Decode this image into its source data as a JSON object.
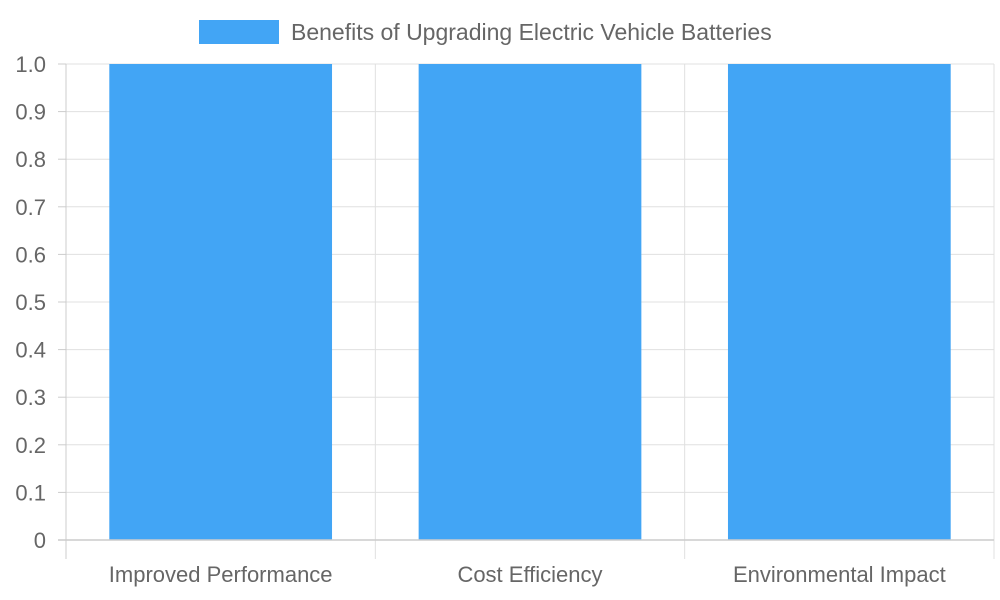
{
  "chart_data": {
    "type": "bar",
    "categories": [
      "Improved Performance",
      "Cost Efficiency",
      "Environmental Impact"
    ],
    "series": [
      {
        "name": "Benefits of Upgrading Electric Vehicle Batteries",
        "values": [
          1,
          1,
          1
        ],
        "color": "#42a5f5"
      }
    ],
    "y_ticks": [
      "0",
      "0.1",
      "0.2",
      "0.3",
      "0.4",
      "0.5",
      "0.6",
      "0.7",
      "0.8",
      "0.9",
      "1.0"
    ],
    "ylim": [
      0,
      1
    ],
    "grid": true,
    "legend_position": "top-center",
    "title": "",
    "xlabel": "",
    "ylabel": ""
  }
}
